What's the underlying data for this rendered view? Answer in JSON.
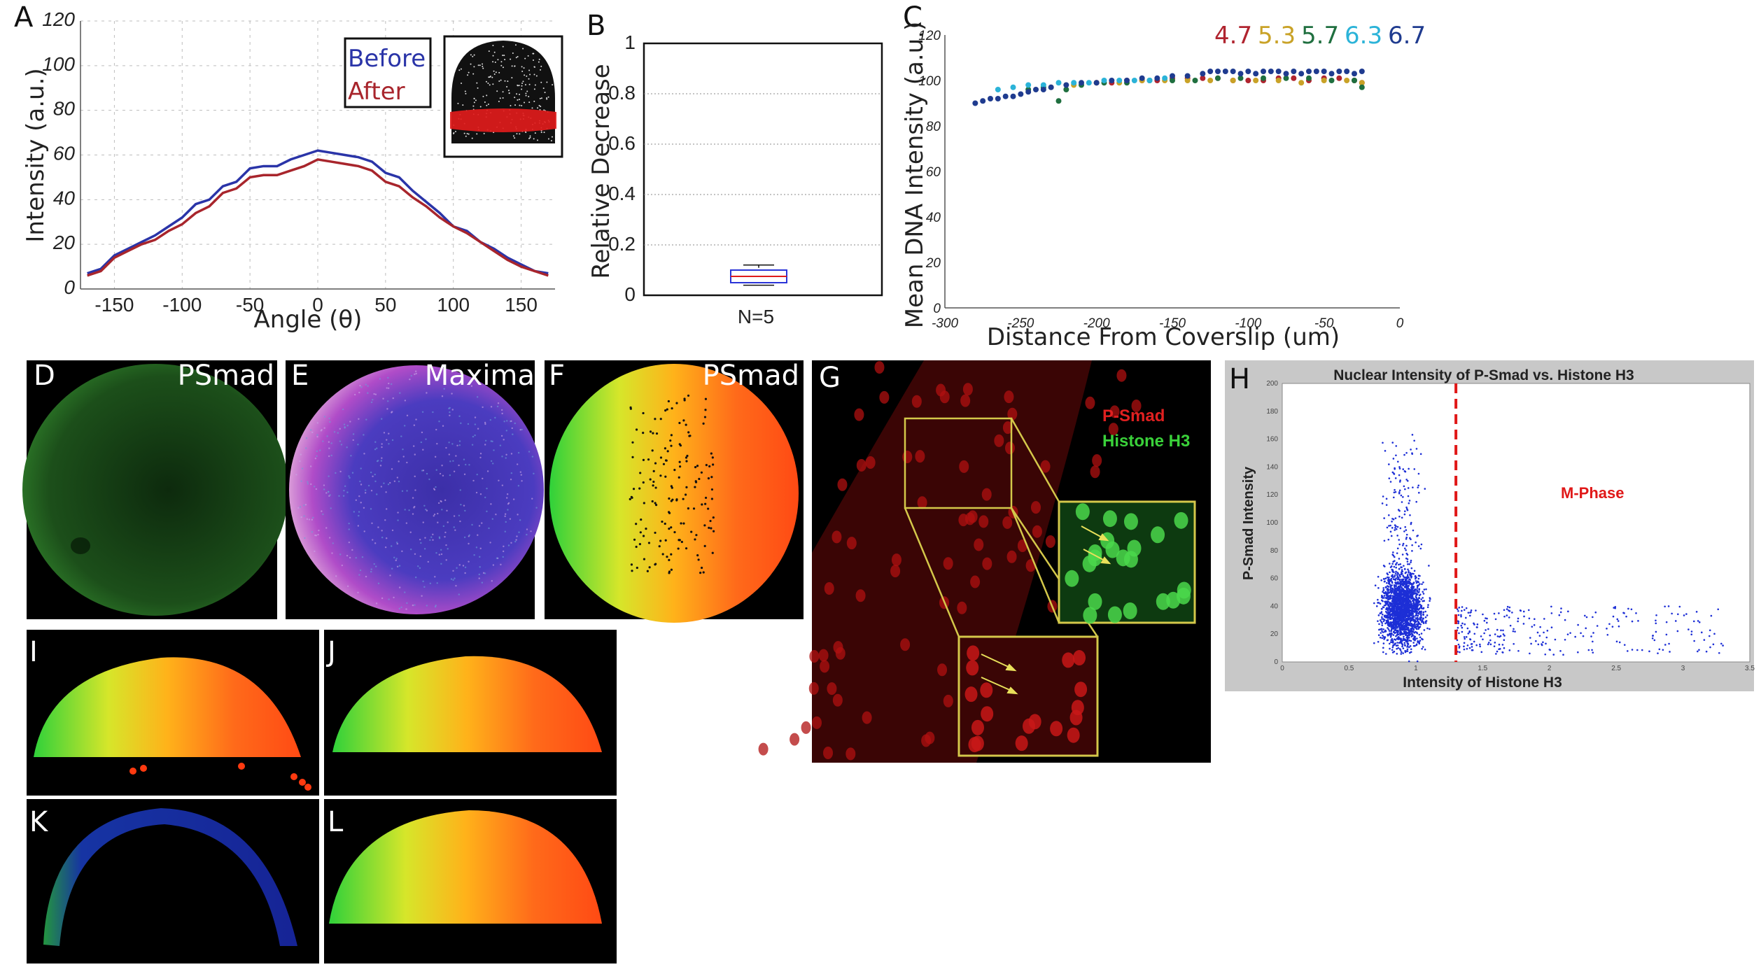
{
  "colors": {
    "before": "#2a34a8",
    "after": "#a8252c",
    "ph47": "#b0242f",
    "ph53": "#c9a227",
    "ph57": "#1f6f3f",
    "ph63": "#2bb3d8",
    "ph67": "#1f3b8f",
    "grid": "#bdbdbd",
    "hs_red": "#e02020",
    "hs_green": "#3ad13a",
    "zoom_box": "#d4c84a",
    "h_scatter": "#1d2fd6",
    "h_line": "#e01818",
    "h_bg": "#c8c8c8"
  },
  "panel_a": {
    "label": "A",
    "ylabel": "Intensity (a.u.)",
    "xlabel": "Angle (θ)",
    "legend": [
      "Before",
      "After"
    ],
    "yticks": [
      "0",
      "20",
      "40",
      "60",
      "80",
      "100",
      "120"
    ],
    "xticks": [
      "-150",
      "-100",
      "-50",
      "0",
      "50",
      "100",
      "150"
    ]
  },
  "panel_b": {
    "label": "B",
    "ylabel": "Relative Decrease",
    "xtick": "N=5",
    "yticks": [
      "0",
      "0.2",
      "0.4",
      "0.6",
      "0.8",
      "1"
    ]
  },
  "panel_c": {
    "label": "C",
    "ylabel": "Mean DNA Intensity (a.u.)",
    "xlabel": "Distance From Coverslip (um)",
    "legend": [
      "4.7",
      "5.3",
      "5.7",
      "6.3",
      "6.7"
    ],
    "yticks": [
      "0",
      "20",
      "40",
      "60",
      "80",
      "100",
      "120"
    ],
    "xticks": [
      "-300",
      "-250",
      "-200",
      "-150",
      "-100",
      "-50",
      "0"
    ]
  },
  "panel_d": {
    "label": "D",
    "caption": "PSmad"
  },
  "panel_e": {
    "label": "E",
    "caption": "Maxima"
  },
  "panel_f": {
    "label": "F",
    "caption": "PSmad"
  },
  "panel_g": {
    "label": "G",
    "legend_red": "P-Smad",
    "legend_green": "Histone H3"
  },
  "panel_h": {
    "label": "H",
    "title": "Nuclear Intensity of P-Smad vs. Histone H3",
    "ylabel": "P-Smad Intensity",
    "xlabel": "Intensity of Histone H3",
    "annotation": "M-Phase",
    "yticks": [
      "0",
      "20",
      "40",
      "60",
      "80",
      "100",
      "120",
      "140",
      "160",
      "180",
      "200"
    ],
    "xticks": [
      "0",
      "0.5",
      "1",
      "1.5",
      "2",
      "2.5",
      "3",
      "3.5"
    ]
  },
  "panel_i": {
    "label": "I"
  },
  "panel_j": {
    "label": "J"
  },
  "panel_k": {
    "label": "K"
  },
  "panel_l": {
    "label": "L"
  },
  "chart_data": [
    {
      "panel": "A",
      "type": "line",
      "x": [
        -170,
        -160,
        -150,
        -140,
        -130,
        -120,
        -110,
        -100,
        -90,
        -80,
        -70,
        -60,
        -50,
        -40,
        -30,
        -20,
        -10,
        0,
        10,
        20,
        30,
        40,
        50,
        60,
        70,
        80,
        90,
        100,
        110,
        120,
        130,
        140,
        150,
        160,
        170
      ],
      "series": [
        {
          "name": "Before",
          "values": [
            7,
            9,
            15,
            18,
            21,
            24,
            28,
            32,
            38,
            40,
            46,
            48,
            54,
            55,
            55,
            58,
            60,
            62,
            61,
            60,
            59,
            57,
            52,
            50,
            44,
            39,
            34,
            28,
            26,
            21,
            18,
            14,
            11,
            8,
            7
          ]
        },
        {
          "name": "After",
          "values": [
            6,
            8,
            14,
            17,
            20,
            22,
            26,
            29,
            34,
            37,
            43,
            45,
            50,
            51,
            51,
            53,
            55,
            58,
            57,
            56,
            55,
            53,
            48,
            46,
            41,
            37,
            32,
            28,
            25,
            21,
            17,
            13,
            10,
            8,
            6
          ]
        }
      ],
      "xlim": [
        -175,
        175
      ],
      "ylim": [
        0,
        120
      ],
      "xlabel": "Angle (θ)",
      "ylabel": "Intensity (a.u.)",
      "grid": true,
      "legend": "top-right"
    },
    {
      "panel": "B",
      "type": "box",
      "categories": [
        "N=5"
      ],
      "box": {
        "min": 0.04,
        "q1": 0.05,
        "median": 0.075,
        "q3": 0.1,
        "max": 0.12
      },
      "ylim": [
        0,
        1
      ],
      "ylabel": "Relative Decrease",
      "grid": true
    },
    {
      "panel": "C",
      "type": "scatter",
      "series": [
        {
          "name": "4.7",
          "x": [
            -200,
            -190,
            -180,
            -170,
            -160,
            -150,
            -140,
            -130,
            -120,
            -110,
            -100,
            -90,
            -80,
            -70,
            -60,
            -50,
            -40,
            -30,
            -25
          ],
          "values": [
            99,
            99,
            100,
            100,
            100,
            101,
            101,
            101,
            101,
            100,
            100,
            100,
            101,
            101,
            100,
            101,
            101,
            100,
            99
          ]
        },
        {
          "name": "5.3",
          "x": [
            -230,
            -215,
            -200,
            -185,
            -170,
            -155,
            -140,
            -125,
            -110,
            -95,
            -80,
            -65,
            -50,
            -35,
            -25
          ],
          "values": [
            97,
            98,
            99,
            99,
            100,
            100,
            100,
            100,
            100,
            100,
            100,
            99,
            100,
            100,
            99
          ]
        },
        {
          "name": "5.7",
          "x": [
            -245,
            -235,
            -225,
            -220,
            -210,
            -195,
            -180,
            -165,
            -150,
            -135,
            -120,
            -105,
            -90,
            -75,
            -60,
            -45,
            -30,
            -25
          ],
          "values": [
            96,
            97,
            91,
            96,
            98,
            99,
            99,
            100,
            100,
            100,
            101,
            101,
            101,
            101,
            101,
            100,
            100,
            97
          ]
        },
        {
          "name": "6.3",
          "x": [
            -265,
            -255,
            -245,
            -235,
            -225,
            -215,
            -205,
            -195,
            -185,
            -175,
            -165,
            -155
          ],
          "values": [
            96,
            97,
            98,
            98,
            99,
            99,
            99,
            100,
            100,
            100,
            100,
            101
          ]
        },
        {
          "name": "6.7",
          "x": [
            -280,
            -275,
            -270,
            -265,
            -260,
            -255,
            -250,
            -245,
            -240,
            -235,
            -230,
            -220,
            -210,
            -200,
            -190,
            -180,
            -170,
            -160,
            -150,
            -140,
            -130,
            -125,
            -120,
            -115,
            -110,
            -105,
            -100,
            -95,
            -90,
            -85,
            -80,
            -75,
            -70,
            -65,
            -60,
            -55,
            -50,
            -45,
            -40,
            -35,
            -30,
            -25
          ],
          "values": [
            90,
            91,
            92,
            92,
            93,
            93,
            94,
            95,
            96,
            96,
            97,
            98,
            99,
            99,
            100,
            100,
            101,
            101,
            102,
            102,
            103,
            104,
            104,
            104,
            104,
            103,
            104,
            103,
            104,
            104,
            104,
            103,
            104,
            103,
            104,
            104,
            104,
            103,
            104,
            104,
            103,
            104
          ]
        }
      ],
      "xlim": [
        -300,
        0
      ],
      "ylim": [
        0,
        120
      ],
      "xlabel": "Distance From Coverslip (um)",
      "ylabel": "Mean DNA Intensity (a.u.)",
      "legend": "top"
    },
    {
      "panel": "H",
      "type": "scatter",
      "title": "Nuclear Intensity of P-Smad vs. Histone H3",
      "description_values": {
        "cluster_center": [
          0.9,
          38
        ],
        "cluster_x_range": [
          0.5,
          1.3
        ],
        "cluster_y_range": [
          0,
          185
        ],
        "tail_x_range": [
          1.3,
          3.3
        ],
        "tail_y_range": [
          5,
          40
        ],
        "threshold_x": 1.3
      },
      "xlim": [
        0,
        3.5
      ],
      "ylim": [
        0,
        200
      ],
      "xlabel": "Intensity of Histone H3",
      "ylabel": "P-Smad Intensity"
    }
  ]
}
